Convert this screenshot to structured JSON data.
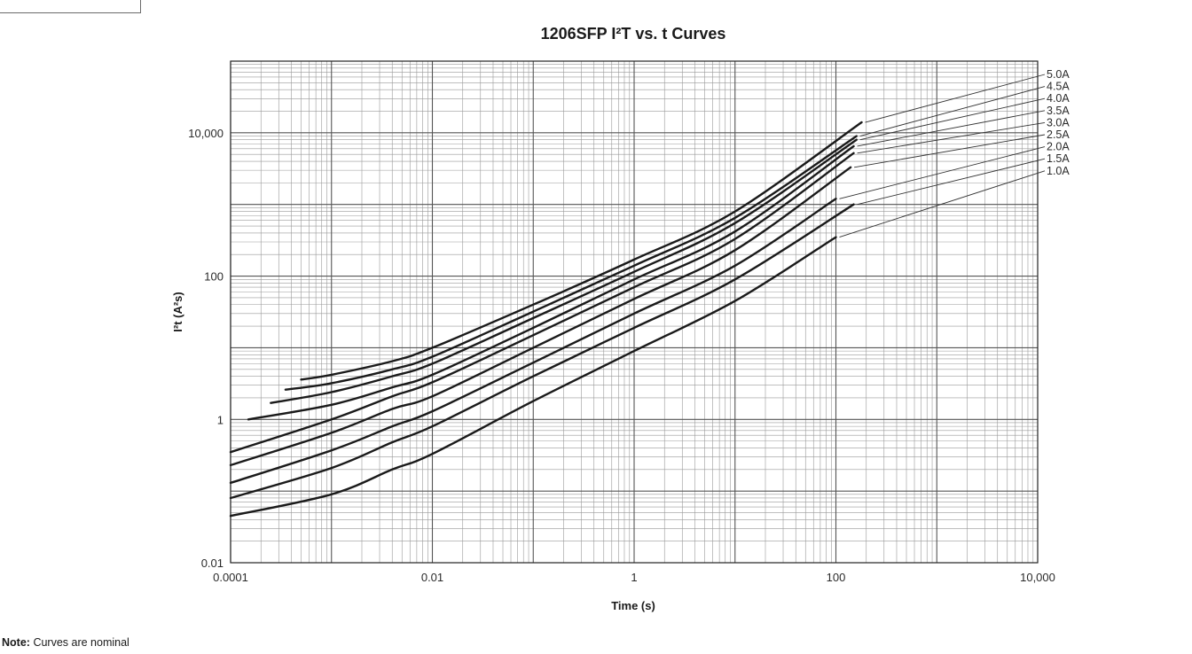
{
  "chart_data": {
    "type": "line",
    "title": "1206SFP I²T vs. t Curves",
    "xlabel": "Time (s)",
    "ylabel": "I²t (A²s)",
    "x_scale": "log",
    "y_scale": "log",
    "xlim": [
      0.0001,
      10000
    ],
    "ylim": [
      0.01,
      100000
    ],
    "grid": true,
    "x_ticks": [
      {
        "value": 0.0001,
        "label": "0.0001"
      },
      {
        "value": 0.01,
        "label": "0.01"
      },
      {
        "value": 1,
        "label": "1"
      },
      {
        "value": 100,
        "label": "100"
      },
      {
        "value": 10000,
        "label": "10,000"
      }
    ],
    "y_ticks": [
      {
        "value": 0.01,
        "label": "0.01"
      },
      {
        "value": 1,
        "label": "1"
      },
      {
        "value": 100,
        "label": "100"
      },
      {
        "value": 10000,
        "label": "10,000"
      }
    ],
    "series": [
      {
        "name": "5.0A",
        "x": [
          0.0005,
          0.001,
          0.004,
          0.01,
          0.1,
          1,
          10,
          180
        ],
        "y": [
          3.6,
          4.2,
          6.5,
          10,
          40,
          170,
          800,
          14000
        ]
      },
      {
        "name": "4.5A",
        "x": [
          0.00035,
          0.001,
          0.004,
          0.01,
          0.1,
          1,
          10,
          160
        ],
        "y": [
          2.6,
          3.2,
          5.0,
          7.5,
          32,
          140,
          650,
          9000
        ]
      },
      {
        "name": "4.0A",
        "x": [
          0.00025,
          0.001,
          0.004,
          0.01,
          0.1,
          1,
          10,
          160
        ],
        "y": [
          1.7,
          2.4,
          4.0,
          6.0,
          26,
          115,
          550,
          8000
        ]
      },
      {
        "name": "3.5A",
        "x": [
          0.00015,
          0.001,
          0.004,
          0.01,
          0.1,
          1,
          10,
          150
        ],
        "y": [
          1.0,
          1.6,
          2.8,
          4.2,
          19,
          90,
          420,
          6500
        ]
      },
      {
        "name": "3.0A",
        "x": [
          0.0001,
          0.001,
          0.004,
          0.01,
          0.1,
          1,
          10,
          150
        ],
        "y": [
          0.35,
          1.0,
          2.1,
          3.3,
          15,
          70,
          330,
          5200
        ]
      },
      {
        "name": "2.5A",
        "x": [
          0.0001,
          0.001,
          0.004,
          0.01,
          0.1,
          1,
          10,
          140
        ],
        "y": [
          0.23,
          0.65,
          1.4,
          2.1,
          10,
          48,
          230,
          3300
        ]
      },
      {
        "name": "2.0A",
        "x": [
          0.0001,
          0.001,
          0.004,
          0.01,
          0.1,
          1,
          10,
          100
        ],
        "y": [
          0.13,
          0.37,
          0.8,
          1.3,
          6.2,
          30,
          140,
          1200
        ]
      },
      {
        "name": "1.5A",
        "x": [
          0.0001,
          0.001,
          0.004,
          0.01,
          0.1,
          1,
          10,
          150
        ],
        "y": [
          0.08,
          0.21,
          0.48,
          0.8,
          4.0,
          19,
          90,
          1000
        ]
      },
      {
        "name": "1.0A",
        "x": [
          0.0001,
          0.001,
          0.004,
          0.01,
          0.1,
          1,
          10,
          100
        ],
        "y": [
          0.045,
          0.09,
          0.2,
          0.33,
          1.8,
          9,
          45,
          350
        ]
      }
    ]
  },
  "note": {
    "label": "Note:",
    "text": "Curves are nominal"
  }
}
